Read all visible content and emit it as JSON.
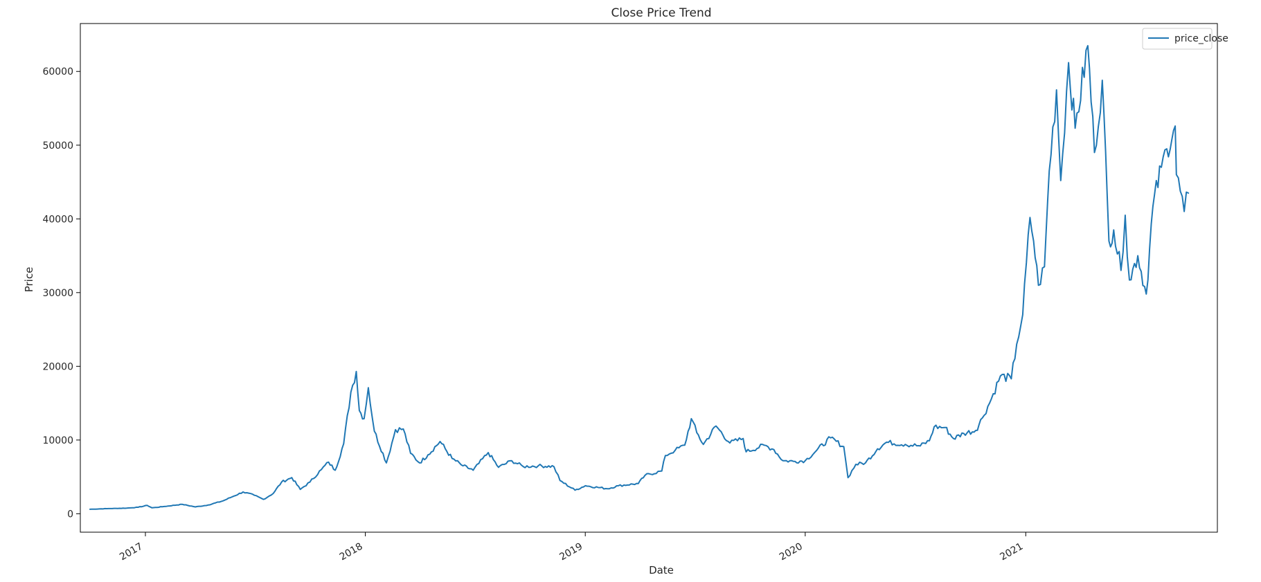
{
  "chart_data": {
    "type": "line",
    "title": "Close Price Trend",
    "xlabel": "Date",
    "ylabel": "Price",
    "x_axis_type": "date",
    "xlim": [
      "2016-09-15",
      "2021-11-15"
    ],
    "ylim": [
      -2500,
      66500
    ],
    "xticks": [
      {
        "date": "2017-01-01",
        "label": "2017"
      },
      {
        "date": "2018-01-01",
        "label": "2018"
      },
      {
        "date": "2019-01-01",
        "label": "2019"
      },
      {
        "date": "2020-01-01",
        "label": "2020"
      },
      {
        "date": "2021-01-01",
        "label": "2021"
      }
    ],
    "yticks": [
      0,
      10000,
      20000,
      30000,
      40000,
      50000,
      60000
    ],
    "ytick_labels": [
      "0",
      "10000",
      "20000",
      "30000",
      "40000",
      "50000",
      "60000"
    ],
    "grid": false,
    "legend": "top-right",
    "series": [
      {
        "name": "price_close",
        "color": "#1f77b4",
        "points": [
          [
            "2016-10-01",
            610
          ],
          [
            "2016-11-01",
            700
          ],
          [
            "2016-12-01",
            760
          ],
          [
            "2016-12-20",
            880
          ],
          [
            "2017-01-04",
            1130
          ],
          [
            "2017-01-12",
            800
          ],
          [
            "2017-02-01",
            980
          ],
          [
            "2017-03-03",
            1280
          ],
          [
            "2017-03-25",
            930
          ],
          [
            "2017-04-15",
            1180
          ],
          [
            "2017-05-10",
            1750
          ],
          [
            "2017-05-25",
            2300
          ],
          [
            "2017-06-12",
            2950
          ],
          [
            "2017-07-01",
            2500
          ],
          [
            "2017-07-16",
            1950
          ],
          [
            "2017-08-01",
            2750
          ],
          [
            "2017-08-15",
            4300
          ],
          [
            "2017-09-01",
            4900
          ],
          [
            "2017-09-15",
            3300
          ],
          [
            "2017-10-01",
            4300
          ],
          [
            "2017-10-20",
            6000
          ],
          [
            "2017-11-01",
            7000
          ],
          [
            "2017-11-12",
            5900
          ],
          [
            "2017-11-26",
            9500
          ],
          [
            "2017-12-08",
            16500
          ],
          [
            "2017-12-17",
            19300
          ],
          [
            "2017-12-22",
            14000
          ],
          [
            "2017-12-30",
            12900
          ],
          [
            "2018-01-06",
            17100
          ],
          [
            "2018-01-16",
            11200
          ],
          [
            "2018-02-05",
            6900
          ],
          [
            "2018-02-20",
            11400
          ],
          [
            "2018-03-05",
            11500
          ],
          [
            "2018-03-17",
            8200
          ],
          [
            "2018-04-01",
            6900
          ],
          [
            "2018-04-15",
            8000
          ],
          [
            "2018-05-05",
            9800
          ],
          [
            "2018-05-25",
            7500
          ],
          [
            "2018-06-12",
            6500
          ],
          [
            "2018-06-29",
            5900
          ],
          [
            "2018-07-24",
            8300
          ],
          [
            "2018-08-10",
            6300
          ],
          [
            "2018-09-01",
            7200
          ],
          [
            "2018-09-20",
            6400
          ],
          [
            "2018-10-15",
            6500
          ],
          [
            "2018-11-10",
            6400
          ],
          [
            "2018-11-20",
            4500
          ],
          [
            "2018-12-15",
            3200
          ],
          [
            "2019-01-01",
            3800
          ],
          [
            "2019-02-07",
            3400
          ],
          [
            "2019-02-25",
            3800
          ],
          [
            "2019-03-30",
            4100
          ],
          [
            "2019-04-10",
            5200
          ],
          [
            "2019-05-08",
            5800
          ],
          [
            "2019-05-14",
            7900
          ],
          [
            "2019-05-30",
            8600
          ],
          [
            "2019-06-15",
            9300
          ],
          [
            "2019-06-26",
            12900
          ],
          [
            "2019-07-05",
            11000
          ],
          [
            "2019-07-16",
            9400
          ],
          [
            "2019-08-06",
            11900
          ],
          [
            "2019-08-29",
            9600
          ],
          [
            "2019-09-20",
            10200
          ],
          [
            "2019-09-25",
            8400
          ],
          [
            "2019-10-25",
            9300
          ],
          [
            "2019-11-10",
            8700
          ],
          [
            "2019-11-25",
            7200
          ],
          [
            "2019-12-15",
            7100
          ],
          [
            "2020-01-01",
            7200
          ],
          [
            "2020-01-20",
            8600
          ],
          [
            "2020-02-12",
            10300
          ],
          [
            "2020-03-05",
            9100
          ],
          [
            "2020-03-12",
            4900
          ],
          [
            "2020-03-25",
            6700
          ],
          [
            "2020-04-10",
            6900
          ],
          [
            "2020-04-30",
            8800
          ],
          [
            "2020-05-15",
            9700
          ],
          [
            "2020-06-15",
            9400
          ],
          [
            "2020-07-10",
            9200
          ],
          [
            "2020-07-25",
            9900
          ],
          [
            "2020-08-02",
            11800
          ],
          [
            "2020-08-20",
            11700
          ],
          [
            "2020-09-03",
            10200
          ],
          [
            "2020-09-20",
            10900
          ],
          [
            "2020-10-10",
            11300
          ],
          [
            "2020-10-21",
            13000
          ],
          [
            "2020-11-05",
            15600
          ],
          [
            "2020-11-20",
            18700
          ],
          [
            "2020-12-08",
            18300
          ],
          [
            "2020-12-17",
            23000
          ],
          [
            "2020-12-27",
            27000
          ],
          [
            "2021-01-08",
            40200
          ],
          [
            "2021-01-14",
            37000
          ],
          [
            "2021-01-22",
            31000
          ],
          [
            "2021-02-01",
            33500
          ],
          [
            "2021-02-09",
            46500
          ],
          [
            "2021-02-21",
            57500
          ],
          [
            "2021-02-28",
            45200
          ],
          [
            "2021-03-13",
            61200
          ],
          [
            "2021-03-24",
            52300
          ],
          [
            "2021-04-14",
            63500
          ],
          [
            "2021-04-25",
            49000
          ],
          [
            "2021-05-08",
            58800
          ],
          [
            "2021-05-19",
            37000
          ],
          [
            "2021-05-27",
            38500
          ],
          [
            "2021-06-08",
            33000
          ],
          [
            "2021-06-15",
            40500
          ],
          [
            "2021-06-22",
            31700
          ],
          [
            "2021-07-06",
            35000
          ],
          [
            "2021-07-20",
            29800
          ],
          [
            "2021-07-31",
            41700
          ],
          [
            "2021-08-14",
            47000
          ],
          [
            "2021-08-23",
            49500
          ],
          [
            "2021-09-06",
            52600
          ],
          [
            "2021-09-08",
            46000
          ],
          [
            "2021-09-21",
            41000
          ],
          [
            "2021-09-28",
            43500
          ]
        ]
      }
    ]
  }
}
